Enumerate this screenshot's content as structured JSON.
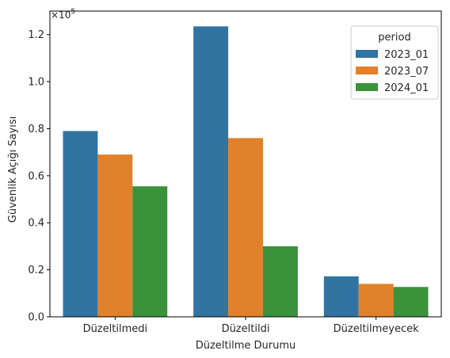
{
  "chart_data": {
    "type": "bar",
    "categories": [
      "Düzeltilmedi",
      "Düzeltildi",
      "Düzeltilmeyecek"
    ],
    "series": [
      {
        "name": "2023_01",
        "color": "#3274a1",
        "values": [
          79000,
          123500,
          17200
        ]
      },
      {
        "name": "2023_07",
        "color": "#e1812c",
        "values": [
          69000,
          76000,
          14000
        ]
      },
      {
        "name": "2024_01",
        "color": "#3a923a",
        "values": [
          55500,
          30000,
          12700
        ]
      }
    ],
    "xlabel": "Düzeltilme Durumu",
    "ylabel": "Güvenlik Açığı Sayısı",
    "ylim": [
      0,
      130000
    ],
    "yticks": [
      0,
      20000,
      40000,
      60000,
      80000,
      100000,
      120000
    ],
    "ytick_labels": [
      "0.0",
      "0.2",
      "0.4",
      "0.6",
      "0.8",
      "1.0",
      "1.2"
    ],
    "offset_text_base": "×10",
    "offset_text_exp": "5",
    "legend": {
      "title": "period",
      "placement": "top-right"
    },
    "grid": false
  }
}
